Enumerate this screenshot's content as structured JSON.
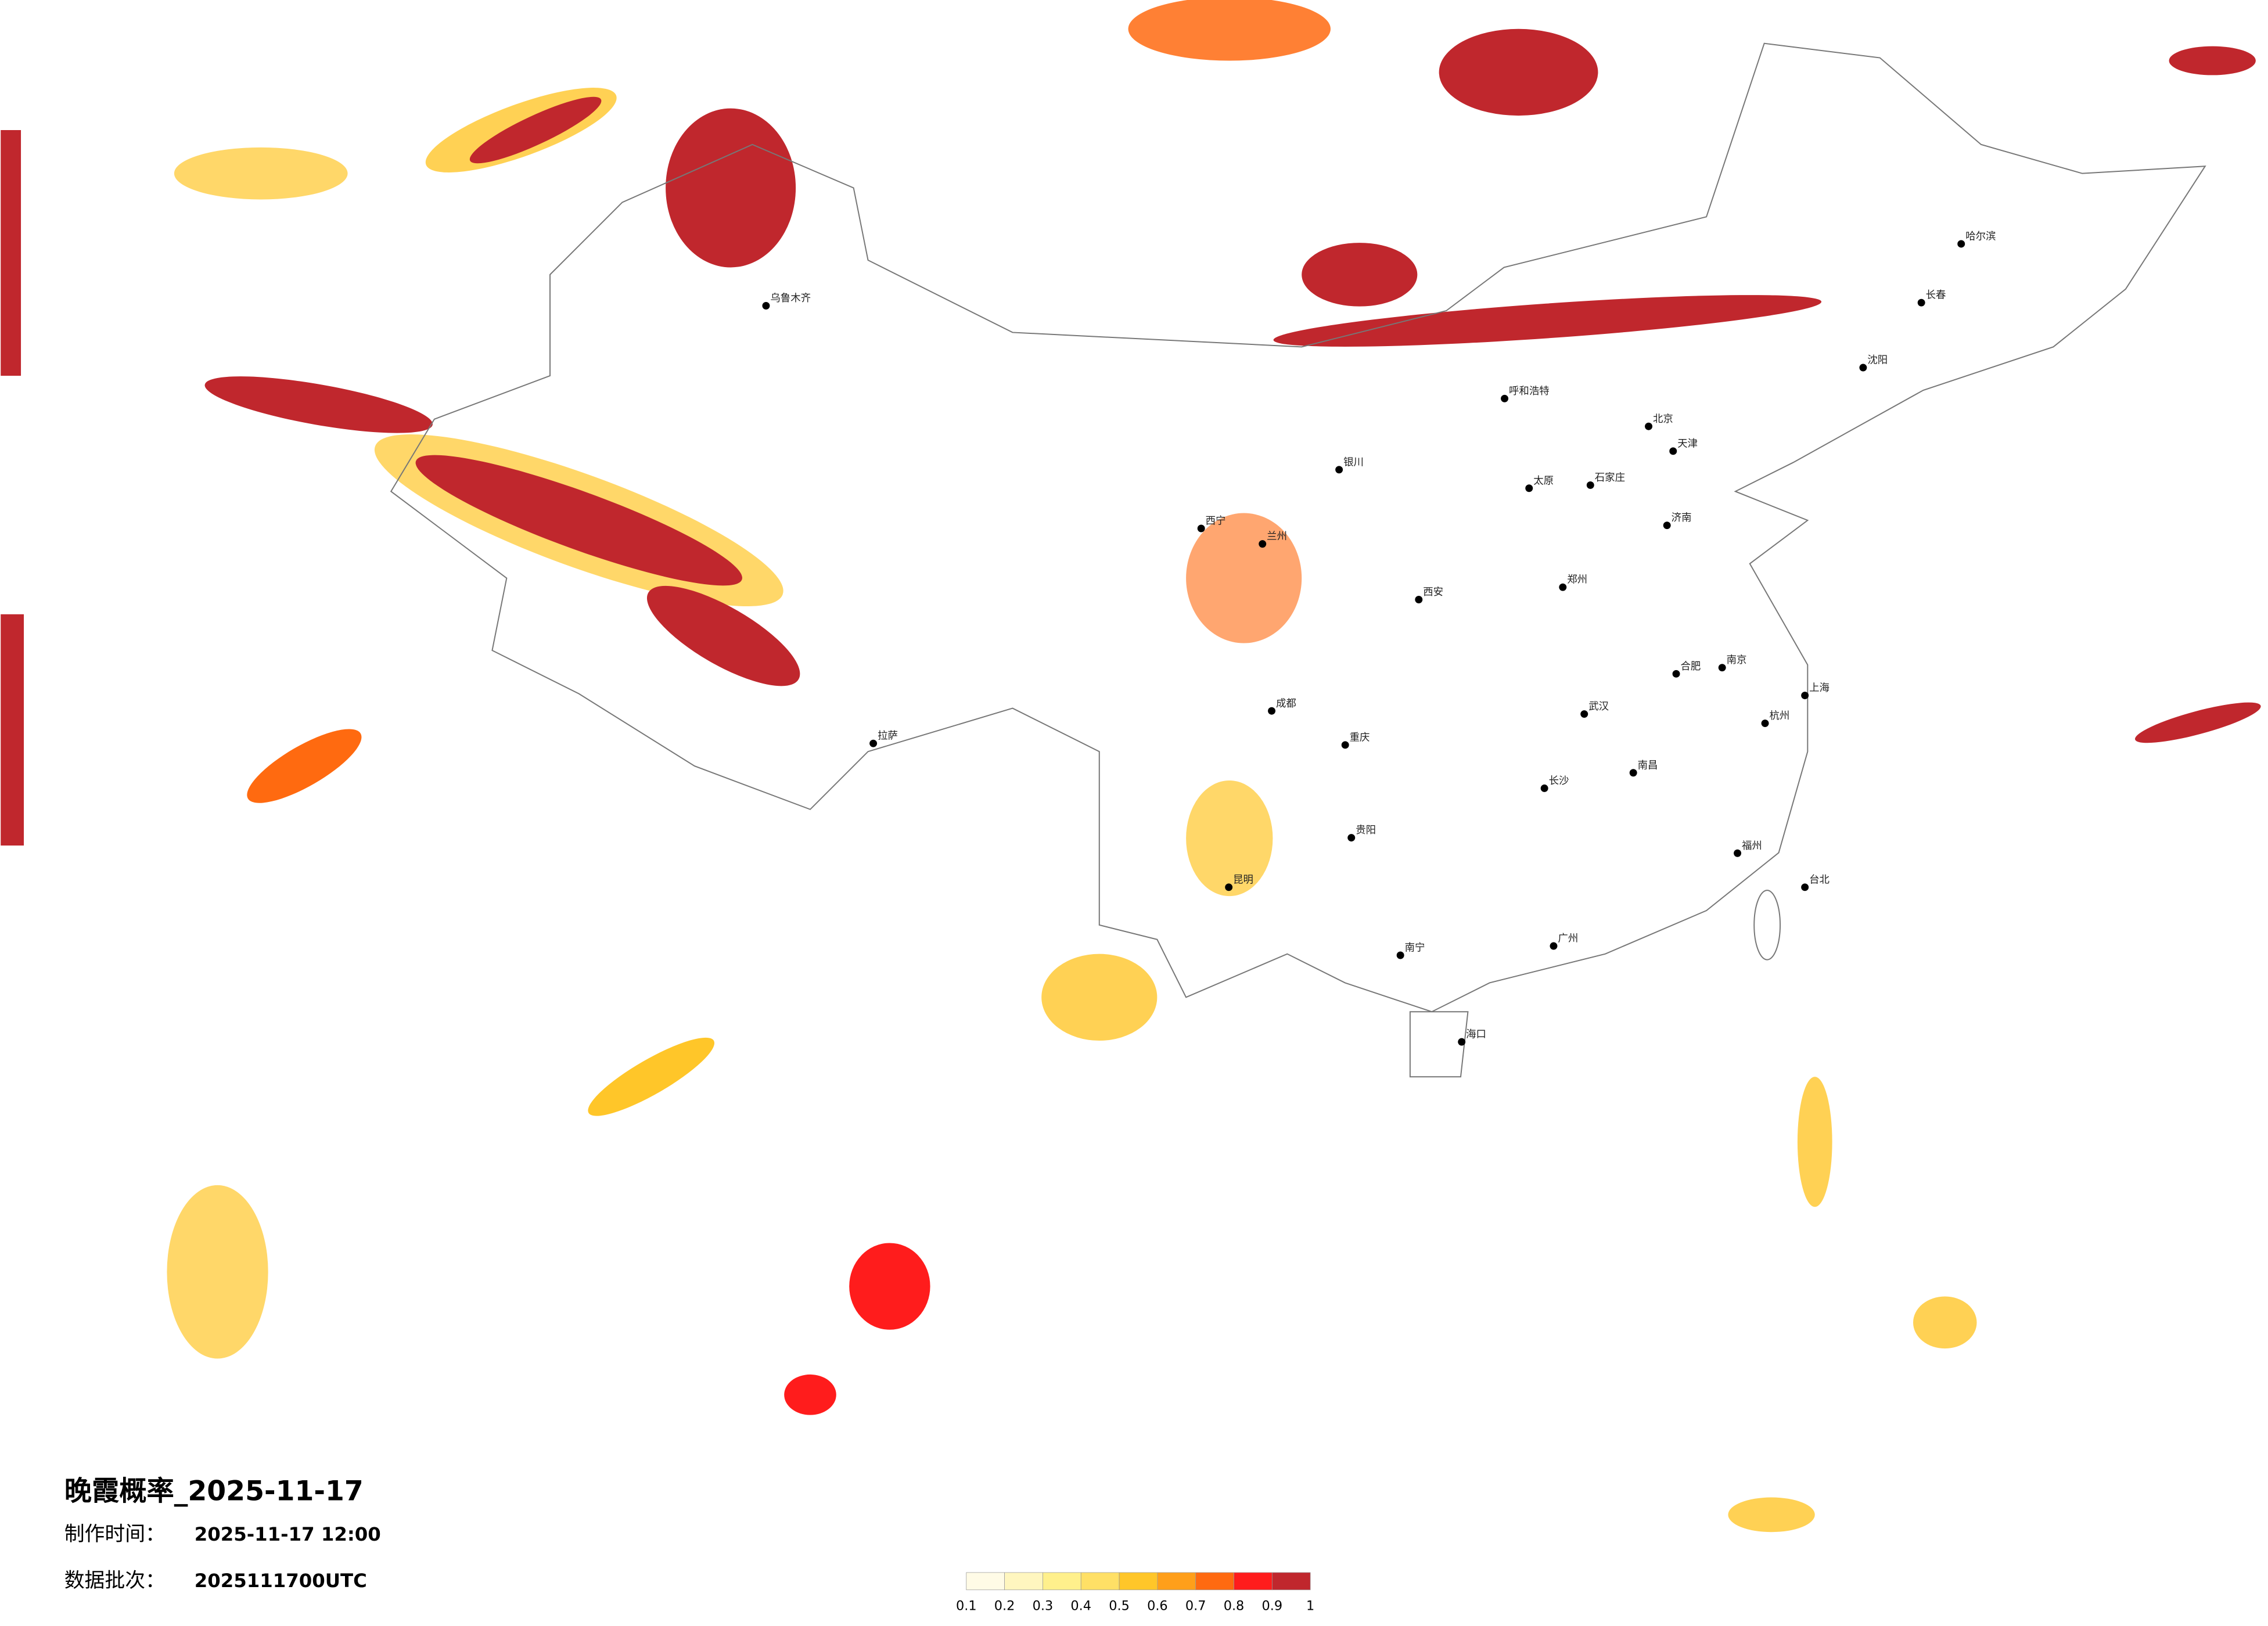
{
  "title": "晚霞概率_2025-11-17",
  "made_label": "制作时间：",
  "made_time": "2025-11-17 12:00",
  "batch_label": "数据批次：",
  "batch": "2025111700UTC",
  "colorbar": {
    "colors": [
      "#fffbe6",
      "#fff6bf",
      "#fff08c",
      "#ffe066",
      "#ffc629",
      "#ff9f1a",
      "#ff6a10",
      "#ff1c1c",
      "#c0272d"
    ],
    "ticks": [
      0.1,
      0.2,
      0.3,
      0.4,
      0.5,
      0.6,
      0.7,
      0.8,
      0.9,
      1
    ]
  },
  "cities": [
    {
      "name": "北京",
      "lon": 116.4,
      "lat": 39.9
    },
    {
      "name": "天津",
      "lon": 117.2,
      "lat": 39.1
    },
    {
      "name": "上海",
      "lon": 121.5,
      "lat": 31.2
    },
    {
      "name": "广州",
      "lon": 113.3,
      "lat": 23.1
    },
    {
      "name": "武汉",
      "lon": 114.3,
      "lat": 30.6
    },
    {
      "name": "成都",
      "lon": 104.1,
      "lat": 30.7
    },
    {
      "name": "西安",
      "lon": 108.9,
      "lat": 34.3
    },
    {
      "name": "拉萨",
      "lon": 91.1,
      "lat": 29.65
    },
    {
      "name": "乌鲁木齐",
      "lon": 87.6,
      "lat": 43.8
    },
    {
      "name": "哈尔滨",
      "lon": 126.6,
      "lat": 45.8
    },
    {
      "name": "沈阳",
      "lon": 123.4,
      "lat": 41.8
    },
    {
      "name": "长春",
      "lon": 125.3,
      "lat": 43.9
    },
    {
      "name": "昆明",
      "lon": 102.7,
      "lat": 25.0
    },
    {
      "name": "兰州",
      "lon": 103.8,
      "lat": 36.1
    },
    {
      "name": "西宁",
      "lon": 101.8,
      "lat": 36.6
    },
    {
      "name": "银川",
      "lon": 106.3,
      "lat": 38.5
    },
    {
      "name": "呼和浩特",
      "lon": 111.7,
      "lat": 40.8
    },
    {
      "name": "南宁",
      "lon": 108.3,
      "lat": 22.8
    },
    {
      "name": "海口",
      "lon": 110.3,
      "lat": 20.0
    },
    {
      "name": "长沙",
      "lon": 113.0,
      "lat": 28.2
    },
    {
      "name": "贵阳",
      "lon": 106.7,
      "lat": 26.6
    },
    {
      "name": "重庆",
      "lon": 106.5,
      "lat": 29.6
    },
    {
      "name": "郑州",
      "lon": 113.6,
      "lat": 34.7
    },
    {
      "name": "济南",
      "lon": 117.0,
      "lat": 36.7
    },
    {
      "name": "南京",
      "lon": 118.8,
      "lat": 32.1
    },
    {
      "name": "杭州",
      "lon": 120.2,
      "lat": 30.3
    },
    {
      "name": "福州",
      "lon": 119.3,
      "lat": 26.1
    },
    {
      "name": "台北",
      "lon": 121.5,
      "lat": 25.0
    },
    {
      "name": "南昌",
      "lon": 115.9,
      "lat": 28.7
    },
    {
      "name": "合肥",
      "lon": 117.3,
      "lat": 31.9
    },
    {
      "name": "太原",
      "lon": 112.5,
      "lat": 37.9
    },
    {
      "name": "石家庄",
      "lon": 114.5,
      "lat": 38.0
    }
  ]
}
